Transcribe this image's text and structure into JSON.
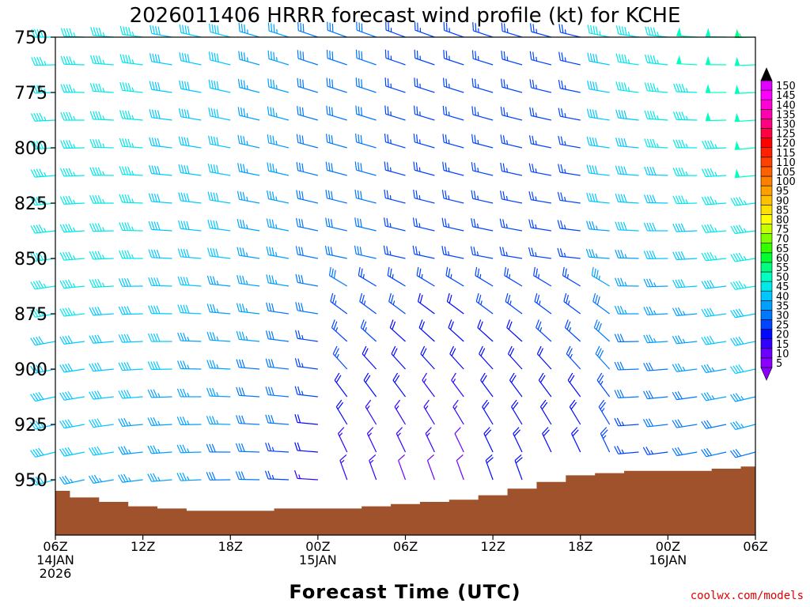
{
  "chart_data": {
    "type": "wind-barb-time-height",
    "title": "2026011406 HRRR forecast wind profile (kt) for KCHE",
    "xlabel": "Forecast Time (UTC)",
    "ylabel": "",
    "credit": "coolwx.com/models",
    "y_unit": "hPa",
    "yrange": [
      750,
      975
    ],
    "y_ticks": [
      "750",
      "775",
      "800",
      "825",
      "850",
      "875",
      "900",
      "925",
      "950"
    ],
    "x_unit": "forecast hour",
    "xrange": [
      0,
      48
    ],
    "x_ticks": [
      {
        "hour": 0,
        "line1": "06Z",
        "line2": "14JAN",
        "line3": "2026"
      },
      {
        "hour": 6,
        "line1": "12Z",
        "line2": "",
        "line3": ""
      },
      {
        "hour": 12,
        "line1": "18Z",
        "line2": "",
        "line3": ""
      },
      {
        "hour": 18,
        "line1": "00Z",
        "line2": "15JAN",
        "line3": ""
      },
      {
        "hour": 24,
        "line1": "06Z",
        "line2": "",
        "line3": ""
      },
      {
        "hour": 30,
        "line1": "12Z",
        "line2": "",
        "line3": ""
      },
      {
        "hour": 36,
        "line1": "18Z",
        "line2": "",
        "line3": ""
      },
      {
        "hour": 42,
        "line1": "00Z",
        "line2": "16JAN",
        "line3": ""
      },
      {
        "hour": 48,
        "line1": "06Z",
        "line2": "",
        "line3": ""
      }
    ],
    "levels_hpa": [
      750,
      762.5,
      775,
      787.5,
      800,
      812.5,
      825,
      837.5,
      850,
      862.5,
      875,
      887.5,
      900,
      912.5,
      925,
      937.5,
      950
    ],
    "barb_hours": [
      0,
      2,
      4,
      6,
      8,
      10,
      12,
      14,
      16,
      18,
      20,
      22,
      24,
      26,
      28,
      30,
      32,
      34,
      36,
      38,
      40,
      42,
      44,
      46,
      48
    ],
    "terrain_color": "#a0522d",
    "surface_pressure": [
      {
        "hour": 0,
        "p": 955
      },
      {
        "hour": 2,
        "p": 958
      },
      {
        "hour": 4,
        "p": 960
      },
      {
        "hour": 6,
        "p": 962
      },
      {
        "hour": 8,
        "p": 963
      },
      {
        "hour": 10,
        "p": 964
      },
      {
        "hour": 12,
        "p": 964
      },
      {
        "hour": 14,
        "p": 964
      },
      {
        "hour": 16,
        "p": 963
      },
      {
        "hour": 18,
        "p": 963
      },
      {
        "hour": 20,
        "p": 963
      },
      {
        "hour": 22,
        "p": 962
      },
      {
        "hour": 24,
        "p": 961
      },
      {
        "hour": 26,
        "p": 960
      },
      {
        "hour": 28,
        "p": 959
      },
      {
        "hour": 30,
        "p": 957
      },
      {
        "hour": 32,
        "p": 954
      },
      {
        "hour": 34,
        "p": 951
      },
      {
        "hour": 36,
        "p": 948
      },
      {
        "hour": 38,
        "p": 947
      },
      {
        "hour": 40,
        "p": 946
      },
      {
        "hour": 42,
        "p": 946
      },
      {
        "hour": 44,
        "p": 946
      },
      {
        "hour": 46,
        "p": 945
      },
      {
        "hour": 48,
        "p": 944
      }
    ],
    "legend": {
      "unit": "kt",
      "placement": "right",
      "values": [
        5,
        10,
        15,
        20,
        25,
        30,
        35,
        40,
        45,
        50,
        55,
        60,
        65,
        70,
        75,
        80,
        85,
        90,
        95,
        100,
        105,
        110,
        115,
        120,
        125,
        130,
        135,
        140,
        145,
        150
      ],
      "colors": [
        "#8a00ff",
        "#6a00ff",
        "#3300ff",
        "#0008ff",
        "#0044ff",
        "#0077ff",
        "#00a0ff",
        "#00c8ff",
        "#00e8e8",
        "#00ffc0",
        "#00ff80",
        "#00ff33",
        "#33ff00",
        "#80ff00",
        "#c8ff00",
        "#ffff00",
        "#ffe000",
        "#ffc000",
        "#ffa000",
        "#ff8000",
        "#ff6000",
        "#ff4000",
        "#ff2000",
        "#ff0000",
        "#ff0040",
        "#ff0080",
        "#ff00b0",
        "#ff00d8",
        "#ff00ff",
        "#e000ff"
      ],
      "top_arrow_color": "#000000",
      "bottom_arrow_color": "#8a00ff"
    }
  }
}
